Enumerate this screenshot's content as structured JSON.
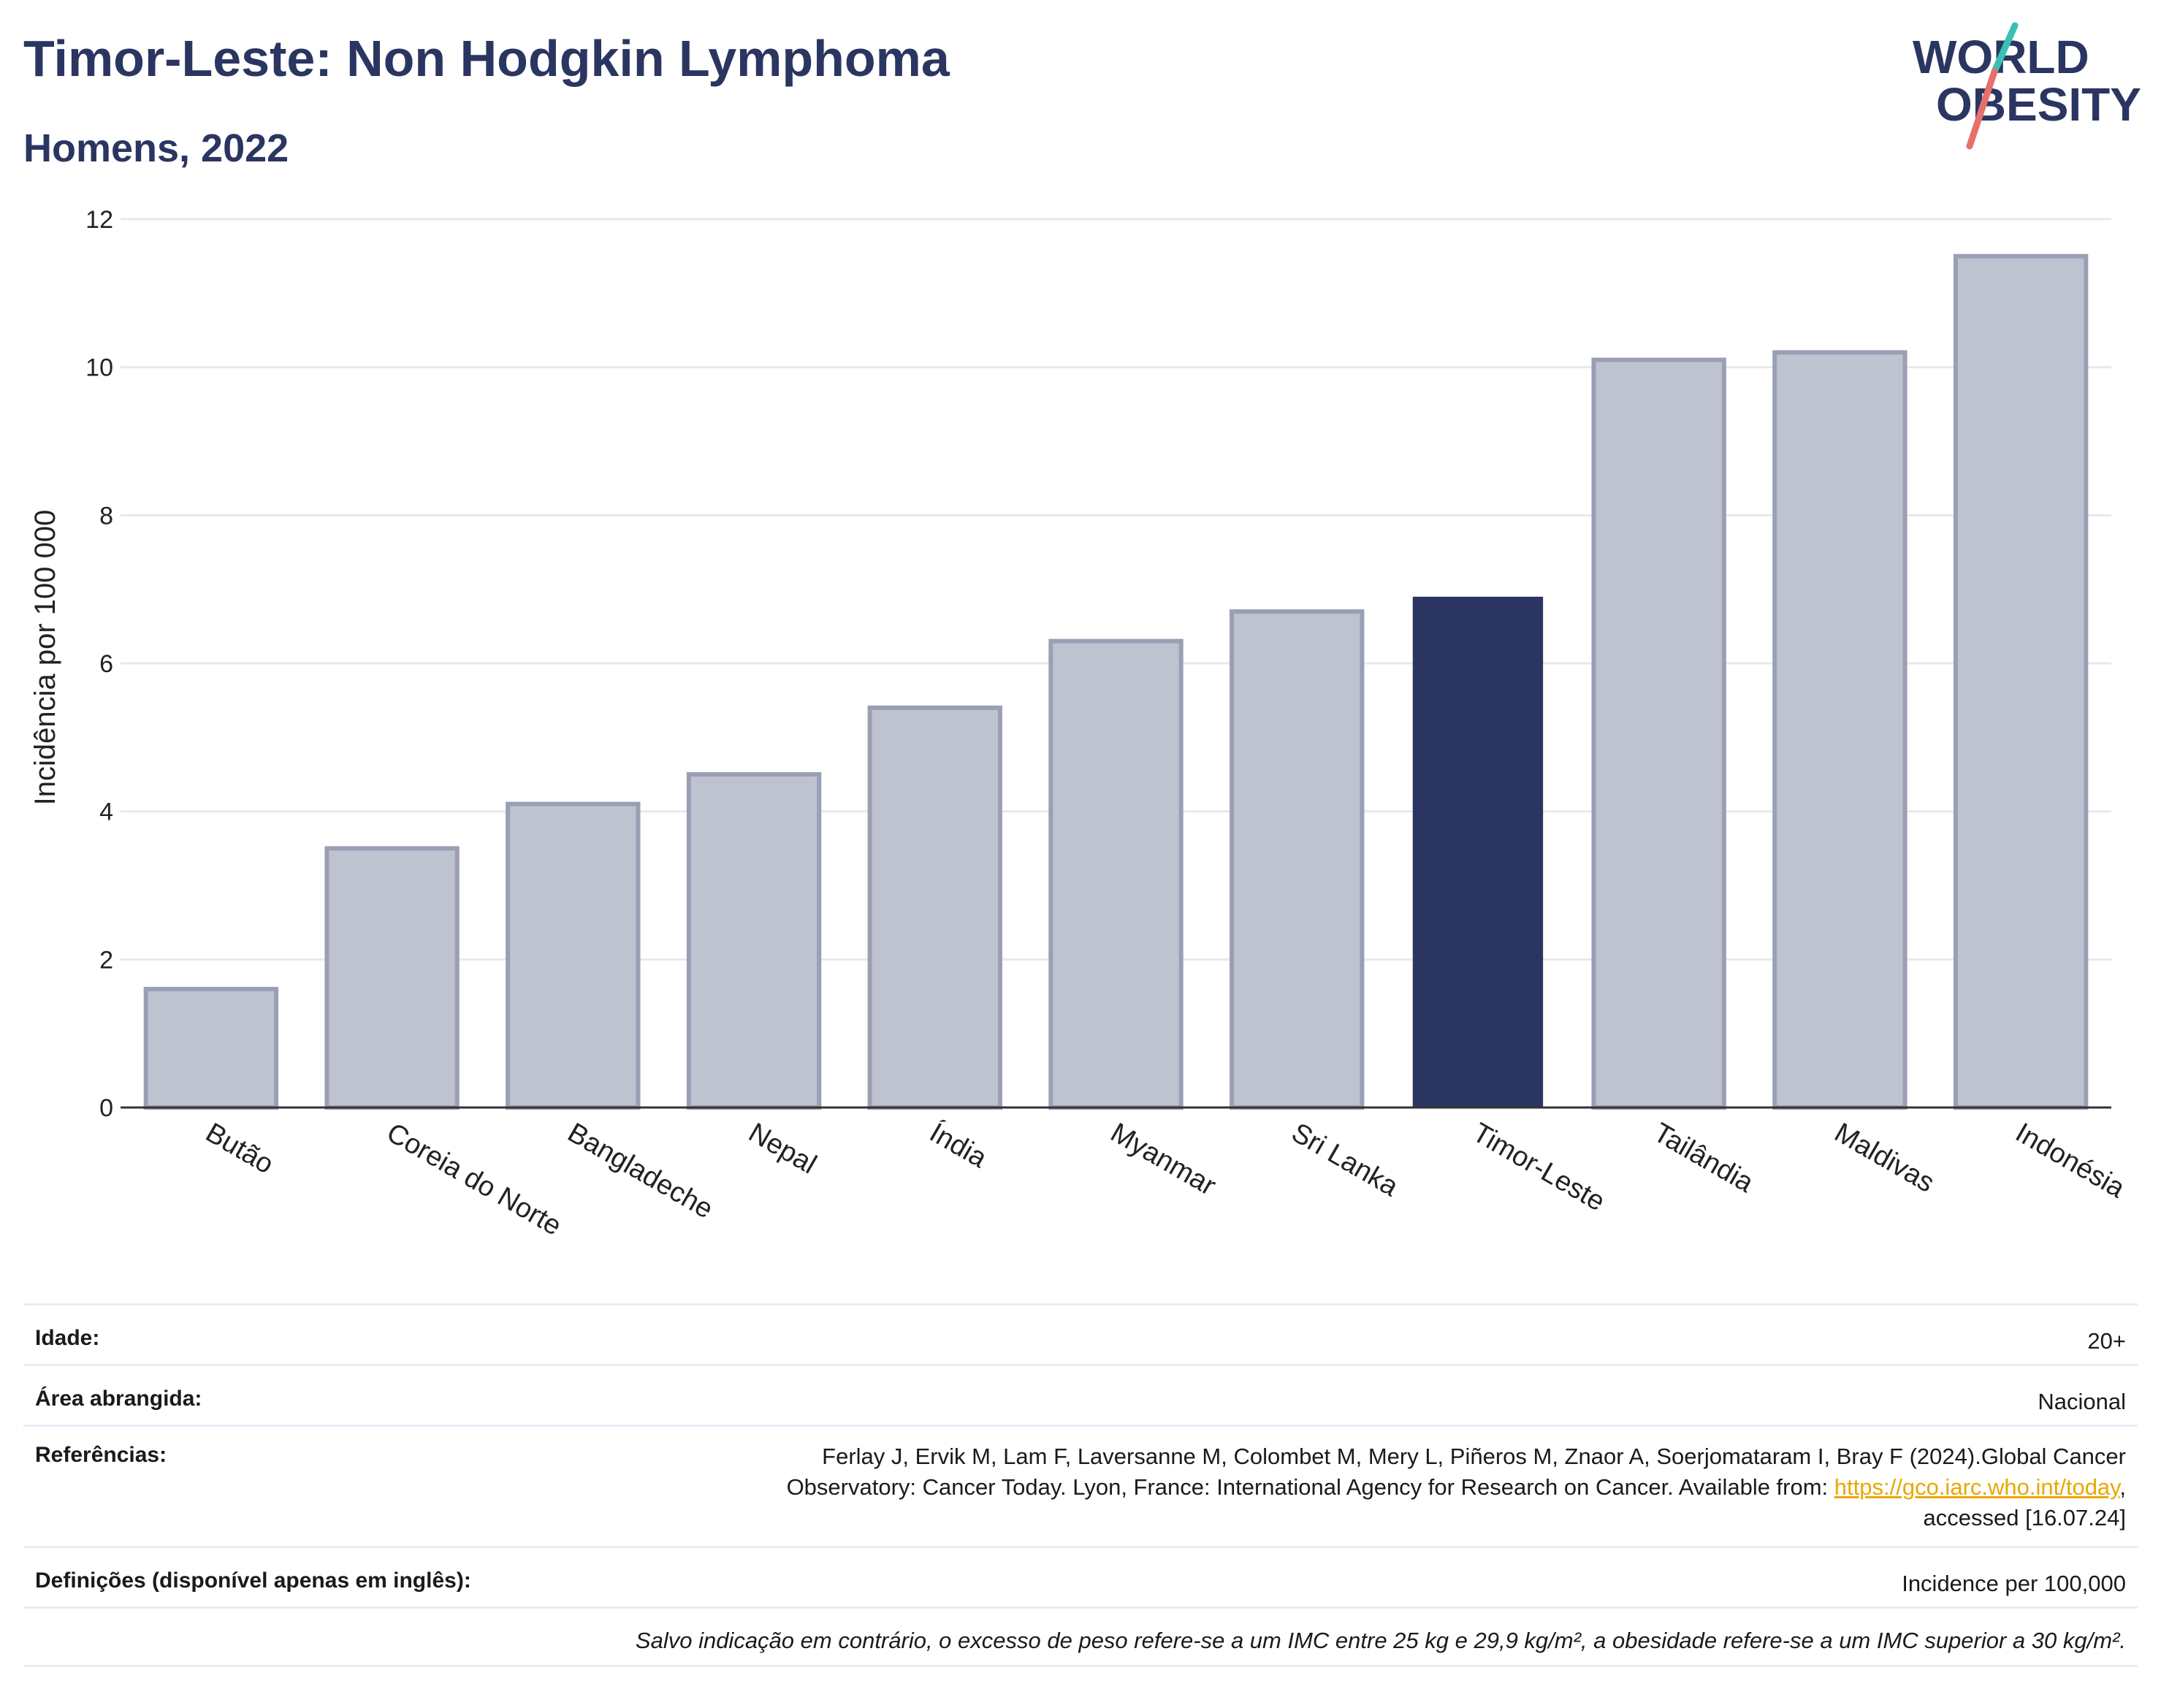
{
  "header": {
    "title": "Timor-Leste: Non Hodgkin Lymphoma",
    "subtitle": "Homens, 2022"
  },
  "logo": {
    "line1": "WORLD",
    "line2": "OBESITY",
    "colors": {
      "text": "#2b3561",
      "slash_teal": "#3bbfb5",
      "slash_red": "#e8706a"
    }
  },
  "chart_data": {
    "type": "bar",
    "categories": [
      "Butão",
      "Coreia do Norte",
      "Bangladeche",
      "Nepal",
      "Índia",
      "Myanmar",
      "Sri Lanka",
      "Timor-Leste",
      "Tailândia",
      "Maldivas",
      "Indonésia"
    ],
    "values": [
      1.6,
      3.5,
      4.1,
      4.5,
      5.4,
      6.3,
      6.7,
      6.9,
      10.1,
      10.2,
      11.5
    ],
    "highlight": "Timor-Leste",
    "ylabel": "Incidência por 100 000",
    "xlabel": "",
    "ylim": [
      0,
      12
    ],
    "yticks": [
      0,
      2,
      4,
      6,
      8,
      10,
      12
    ],
    "grid": true,
    "colors": {
      "bar": "#2b3561",
      "bar_muted_fill": "#bfc2cf",
      "bar_muted_stroke": "#9a9fb5",
      "grid": "#e8e9ee"
    }
  },
  "meta": {
    "age": {
      "label": "Idade:",
      "value": "20+"
    },
    "area": {
      "label": "Área abrangida:",
      "value": "Nacional"
    },
    "references": {
      "label": "Referências:",
      "line1": "Ferlay J, Ervik M, Lam F, Laversanne M, Colombet M, Mery L, Piñeros M, Znaor A, Soerjomataram I, Bray F (2024).Global Cancer",
      "line2_pre": "Observatory: Cancer Today. Lyon, France: International Agency for Research on Cancer. Available from: ",
      "link": "https://gco.iarc.who.int/today",
      "line2_post": ",",
      "line3": "accessed [16.07.24]"
    },
    "definitions": {
      "label": "Definições (disponível apenas em inglês):",
      "value": "Incidence per 100,000"
    },
    "note": "Salvo indicação em contrário, o excesso de peso refere-se a um IMC entre 25 kg e 29,9 kg/m², a obesidade refere-se a um IMC superior a 30 kg/m²."
  }
}
